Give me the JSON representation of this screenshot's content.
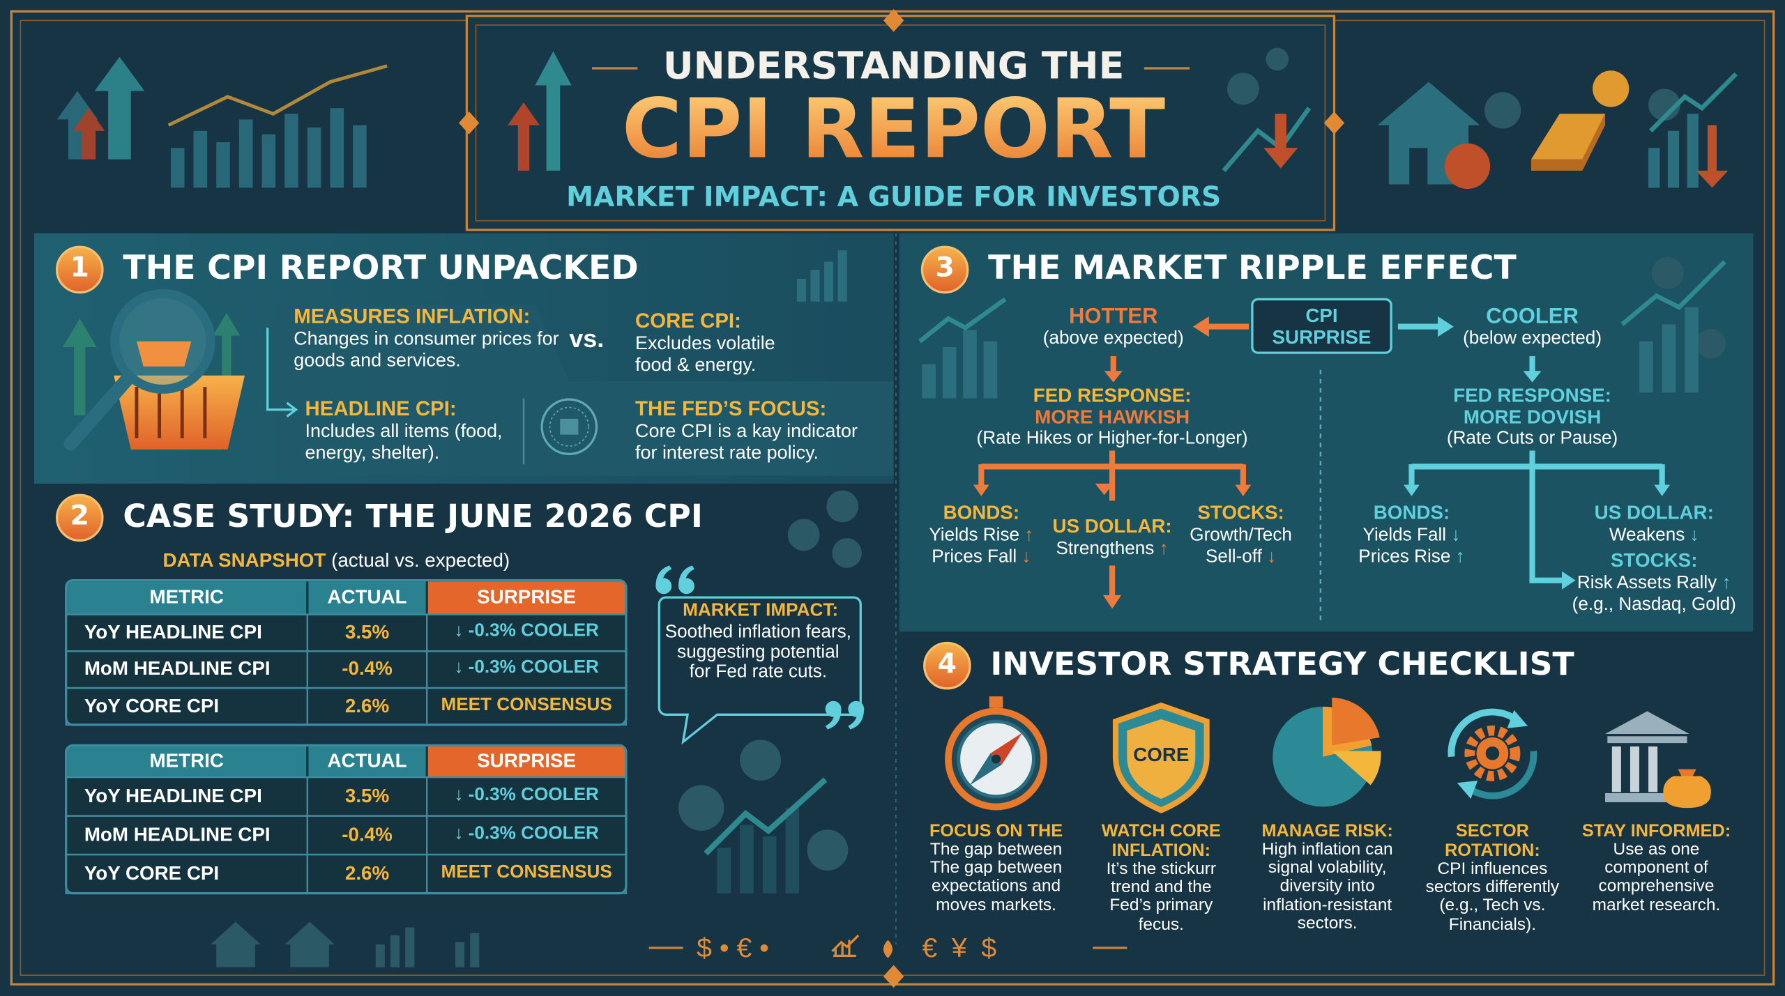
{
  "header": {
    "title_top": "UNDERSTANDING THE",
    "title_main": "CPI REPORT",
    "subtitle": "MARKET IMPACT: A GUIDE FOR INVESTORS"
  },
  "section1": {
    "number": "1",
    "title": "THE CPI REPORT UNPACKED",
    "vs": "vs.",
    "measures": {
      "heading": "MEASURES INFLATION:",
      "text": "Changes in consumer prices for goods and services."
    },
    "headline": {
      "heading": "HEADLINE CPI:",
      "text": "Includes all items (food, energy, shelter)."
    },
    "core": {
      "heading": "CORE CPI:",
      "text": "Excludes volatile food & energy."
    },
    "fed": {
      "heading": "THE FED’S FOCUS:",
      "text": "Core CPI is a kay indicator for interest rate policy."
    }
  },
  "section2": {
    "number": "2",
    "title": "CASE STUDY: THE JUNE 2026 CPI",
    "snapshot_label": "DATA SNAPSHOT",
    "snapshot_note": "(actual vs. expected)",
    "tables": [
      {
        "header": [
          "METRIC",
          "ACTUAL",
          "SURPRISE"
        ],
        "rows": [
          [
            "YoY HEADLINE CPI",
            "3.5%",
            "↓ -0.3% COOLER"
          ],
          [
            "MoM HEADLINE CPI",
            "-0.4%",
            "↓ -0.3% COOLER"
          ],
          [
            "YoY CORE CPI",
            "2.6%",
            "MEET CONSENSUS"
          ]
        ]
      },
      {
        "header": [
          "METRIC",
          "ACTUAL",
          "SURPRISE"
        ],
        "rows": [
          [
            "YoY HEADLINE CPI",
            "3.5%",
            "↓ -0.3% COOLER"
          ],
          [
            "MoM HEADLINE CPI",
            "-0.4%",
            "↓ -0.3% COOLER"
          ],
          [
            "YoY CORE CPI",
            "2.6%",
            "MEET CONSENSUS"
          ]
        ]
      }
    ],
    "quote": {
      "heading": "MARKET IMPACT:",
      "text": "Soothed inflation fears, suggesting potential for Fed rate cuts."
    }
  },
  "section3": {
    "number": "3",
    "title": "THE MARKET RIPPLE EFFECT",
    "center": "CPI SURPRISE",
    "hotter": {
      "label": "HOTTER",
      "note": "(above expected)",
      "fed_heading": "FED RESPONSE:",
      "fed_stance": "MORE HAWKISH",
      "fed_note": "(Rate Hikes or Higher-for-Longer)",
      "outcomes": [
        {
          "heading": "BONDS:",
          "lines": [
            {
              "text": "Yields Rise",
              "arrow": "↑"
            },
            {
              "text": "Prices Fall",
              "arrow": "↓"
            }
          ]
        },
        {
          "heading": "US DOLLAR:",
          "lines": [
            {
              "text": "Strengthens",
              "arrow": "↑"
            }
          ]
        },
        {
          "heading": "STOCKS:",
          "lines": [
            {
              "text": "Growth/Tech"
            },
            {
              "text": "Sell-off",
              "arrow": "↓"
            }
          ]
        }
      ]
    },
    "cooler": {
      "label": "COOLER",
      "note": "(below expected)",
      "fed_heading": "FED RESPONSE:",
      "fed_stance": "MORE DOVISH",
      "fed_note": "(Rate Cuts or Pause)",
      "outcomes": [
        {
          "heading": "BONDS:",
          "lines": [
            {
              "text": "Yields Fall",
              "arrow": "↓"
            },
            {
              "text": "Prices Rise",
              "arrow": "↑"
            }
          ]
        },
        {
          "heading": "US DOLLAR:",
          "lines": [
            {
              "text": "Weakens",
              "arrow": "↓"
            }
          ]
        },
        {
          "heading": "STOCKS:",
          "lines": [
            {
              "text": "Risk Assets Rally",
              "arrow": "↑"
            },
            {
              "text": "(e.g., Nasdaq, Gold)"
            }
          ]
        }
      ]
    }
  },
  "section4": {
    "number": "4",
    "title": "INVESTOR STRATEGY CHECKLIST",
    "shield_label": "CORE",
    "items": [
      {
        "heading": "FOCUS ON THE",
        "text": "The gap between The gap between expectations and moves markets."
      },
      {
        "heading": "WATCH CORE INFLATION:",
        "text": "It’s the stickurr trend and the Fed’s primary fecus."
      },
      {
        "heading": "MANAGE RISK:",
        "text": "High inflation can signal volability, diversity into inflation-resistant sectors."
      },
      {
        "heading": "SECTOR ROTATION:",
        "text": "CPI influences sectors differently (e.g., Tech vs. Financials)."
      },
      {
        "heading": "STAY INFORMED:",
        "text": "Use as one component of comprehensive market research."
      }
    ]
  },
  "footer": {
    "left": "$ • € •",
    "right": "€ ¥ $"
  }
}
